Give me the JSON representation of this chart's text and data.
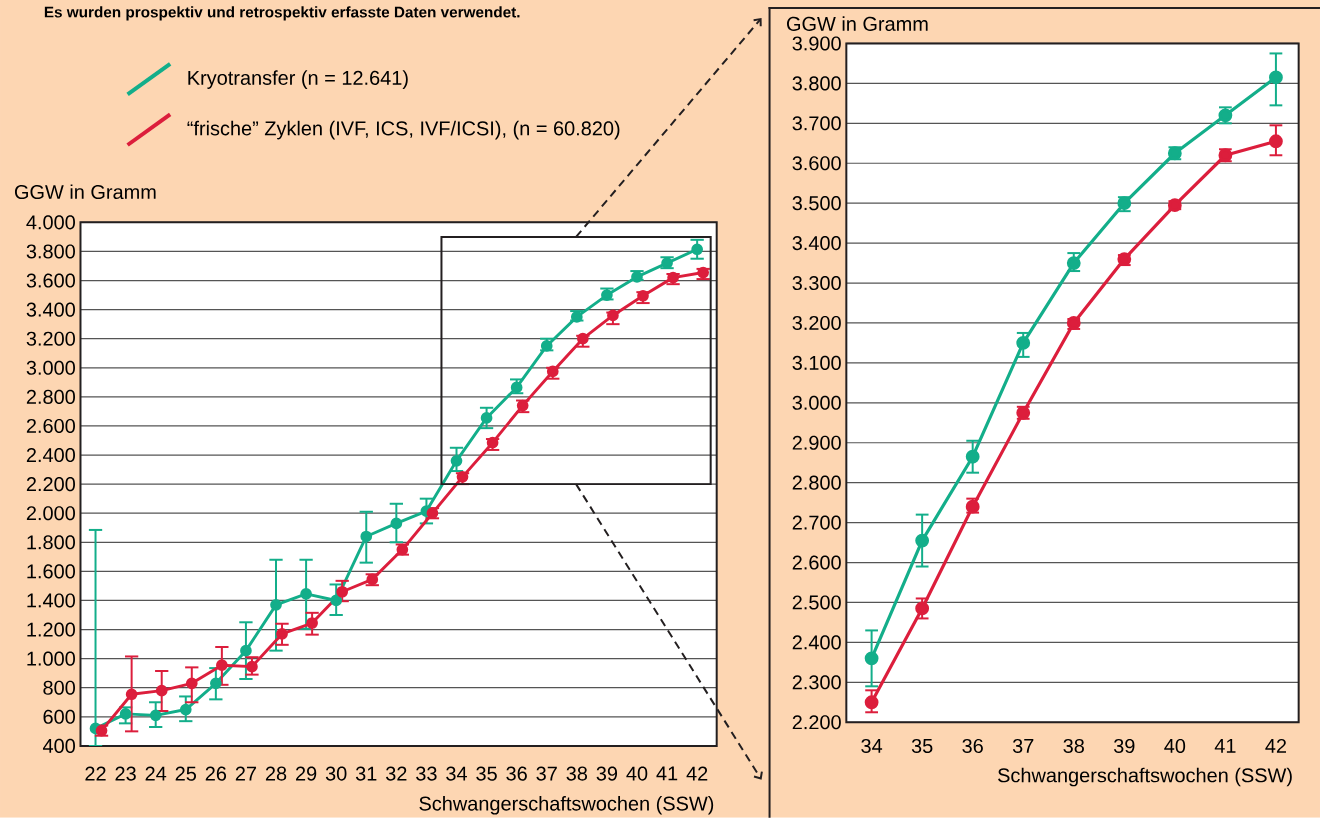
{
  "chart_data": [
    {
      "type": "line",
      "title": "Es wurden prospektiv und retrospektiv erfasste Daten verwendet.",
      "ylabel": "GGW in Gramm",
      "xlabel": "Schwangerschaftswochen (SSW)",
      "x": [
        22,
        23,
        24,
        25,
        26,
        27,
        28,
        29,
        30,
        31,
        32,
        33,
        34,
        35,
        36,
        37,
        38,
        39,
        40,
        41,
        42
      ],
      "xlim": [
        21.5,
        42.65
      ],
      "xticks": [
        22,
        23,
        24,
        25,
        26,
        27,
        28,
        29,
        30,
        31,
        32,
        33,
        34,
        35,
        36,
        37,
        38,
        39,
        40,
        41,
        42
      ],
      "ylim": [
        400,
        4000
      ],
      "yticks": [
        400,
        600,
        800,
        {
          "value": 1000,
          "label": "1.000"
        },
        {
          "value": 1200,
          "label": "1.200"
        },
        {
          "value": 1400,
          "label": "1.400"
        },
        {
          "value": 1600,
          "label": "1.600"
        },
        {
          "value": 1800,
          "label": "1.800"
        },
        {
          "value": 2000,
          "label": "2.000"
        },
        {
          "value": 2200,
          "label": "2.200"
        },
        {
          "value": 2400,
          "label": "2.400"
        },
        {
          "value": 2600,
          "label": "2.600"
        },
        {
          "value": 2800,
          "label": "2.800"
        },
        {
          "value": 3000,
          "label": "3.000"
        },
        {
          "value": 3200,
          "label": "3.200"
        },
        {
          "value": 3400,
          "label": "3.400"
        },
        {
          "value": 3600,
          "label": "3.600"
        },
        {
          "value": 3800,
          "label": "3.800"
        },
        {
          "value": 4000,
          "label": "4.000"
        }
      ],
      "grid": "y",
      "legend": "top left",
      "marker": "circle",
      "line_style": "solid",
      "series": [
        {
          "name": "Kryotransfer (n = 12.641)",
          "color": "#13ae8a",
          "values": [
            520,
            620,
            610,
            650,
            830,
            1055,
            1370,
            1445,
            1400,
            1840,
            1930,
            2015,
            2360,
            2655,
            2865,
            3150,
            3350,
            3500,
            3625,
            3720,
            3815
          ],
          "errors": [
            [
              400,
              1885
            ],
            [
              555,
              665
            ],
            [
              530,
              700
            ],
            [
              570,
              740
            ],
            [
              720,
              935
            ],
            [
              860,
              1250
            ],
            [
              1055,
              1680
            ],
            [
              1205,
              1680
            ],
            [
              1300,
              1510
            ],
            [
              1660,
              2010
            ],
            [
              1800,
              2065
            ],
            [
              1930,
              2100
            ],
            [
              2290,
              2450
            ],
            [
              2585,
              2725
            ],
            [
              2825,
              2920
            ],
            [
              3120,
              3200
            ],
            [
              3325,
              3390
            ],
            [
              3470,
              3545
            ],
            [
              3605,
              3665
            ],
            [
              3685,
              3760
            ],
            [
              3750,
              3880
            ]
          ]
        },
        {
          "name": "“frische” Zyklen (IVF, ICS, IVF/ICSI), (n = 60.820)",
          "color": "#dc1e3c",
          "x": [
            22.2,
            23.2,
            24.2,
            25.2,
            26.2,
            27.2,
            28.2,
            29.2,
            30.2,
            31.2,
            32.2,
            33.2,
            34.2,
            35.2,
            36.2,
            37.2,
            38.2,
            39.2,
            40.2,
            41.2,
            42.2
          ],
          "values": [
            505,
            755,
            780,
            830,
            955,
            945,
            1170,
            1245,
            1460,
            1545,
            1750,
            2000,
            2250,
            2485,
            2740,
            2975,
            3200,
            3360,
            3495,
            3620,
            3655
          ],
          "errors": [
            [
              470,
              540
            ],
            [
              500,
              1015
            ],
            [
              640,
              915
            ],
            [
              700,
              940
            ],
            [
              820,
              1080
            ],
            [
              890,
              1010
            ],
            [
              1095,
              1240
            ],
            [
              1165,
              1315
            ],
            [
              1395,
              1535
            ],
            [
              1505,
              1580
            ],
            [
              1715,
              1785
            ],
            [
              1965,
              2035
            ],
            [
              2200,
              2275
            ],
            [
              2435,
              2510
            ],
            [
              2695,
              2775
            ],
            [
              2925,
              3000
            ],
            [
              3145,
              3220
            ],
            [
              3300,
              3380
            ],
            [
              3445,
              3520
            ],
            [
              3575,
              3645
            ],
            [
              3610,
              3680
            ]
          ]
        }
      ]
    },
    {
      "type": "line",
      "ylabel": "GGW in Gramm",
      "xlabel": "Schwangerschaftswochen (SSW)",
      "x": [
        34,
        35,
        36,
        37,
        38,
        39,
        40,
        41,
        42
      ],
      "xlim": [
        33.5,
        42.45
      ],
      "xticks": [
        34,
        35,
        36,
        37,
        38,
        39,
        40,
        41,
        42
      ],
      "ylim": [
        2200,
        3900
      ],
      "yticks": [
        {
          "value": 2200,
          "label": "2.200"
        },
        {
          "value": 2300,
          "label": "2.300"
        },
        {
          "value": 2400,
          "label": "2.400"
        },
        {
          "value": 2500,
          "label": "2.500"
        },
        {
          "value": 2600,
          "label": "2.600"
        },
        {
          "value": 2700,
          "label": "2.700"
        },
        {
          "value": 2800,
          "label": "2.800"
        },
        {
          "value": 2900,
          "label": "2.900"
        },
        {
          "value": 3000,
          "label": "3.000"
        },
        {
          "value": 3100,
          "label": "3.100"
        },
        {
          "value": 3200,
          "label": "3.200"
        },
        {
          "value": 3300,
          "label": "3.300"
        },
        {
          "value": 3400,
          "label": "3.400"
        },
        {
          "value": 3500,
          "label": "3.500"
        },
        {
          "value": 3600,
          "label": "3.600"
        },
        {
          "value": 3700,
          "label": "3.700"
        },
        {
          "value": 3800,
          "label": "3.800"
        },
        {
          "value": 3900,
          "label": "3.900"
        }
      ],
      "grid": "y",
      "marker": "circle",
      "line_style": "solid",
      "series": [
        {
          "color": "#13ae8a",
          "values": [
            2360,
            2655,
            2865,
            3150,
            3350,
            3500,
            3625,
            3720,
            3815
          ],
          "errors": [
            [
              2290,
              2430
            ],
            [
              2590,
              2720
            ],
            [
              2825,
              2905
            ],
            [
              3115,
              3175
            ],
            [
              3330,
              3375
            ],
            [
              3480,
              3515
            ],
            [
              3610,
              3640
            ],
            [
              3700,
              3740
            ],
            [
              3745,
              3875
            ]
          ]
        },
        {
          "color": "#dc1e3c",
          "values": [
            2250,
            2485,
            2740,
            2975,
            3200,
            3360,
            3495,
            3620,
            3655
          ],
          "errors": [
            [
              2225,
              2280
            ],
            [
              2460,
              2510
            ],
            [
              2725,
              2760
            ],
            [
              2960,
              2990
            ],
            [
              3185,
              3210
            ],
            [
              3345,
              3370
            ],
            [
              3485,
              3505
            ],
            [
              3605,
              3635
            ],
            [
              3620,
              3695
            ]
          ]
        }
      ]
    }
  ]
}
